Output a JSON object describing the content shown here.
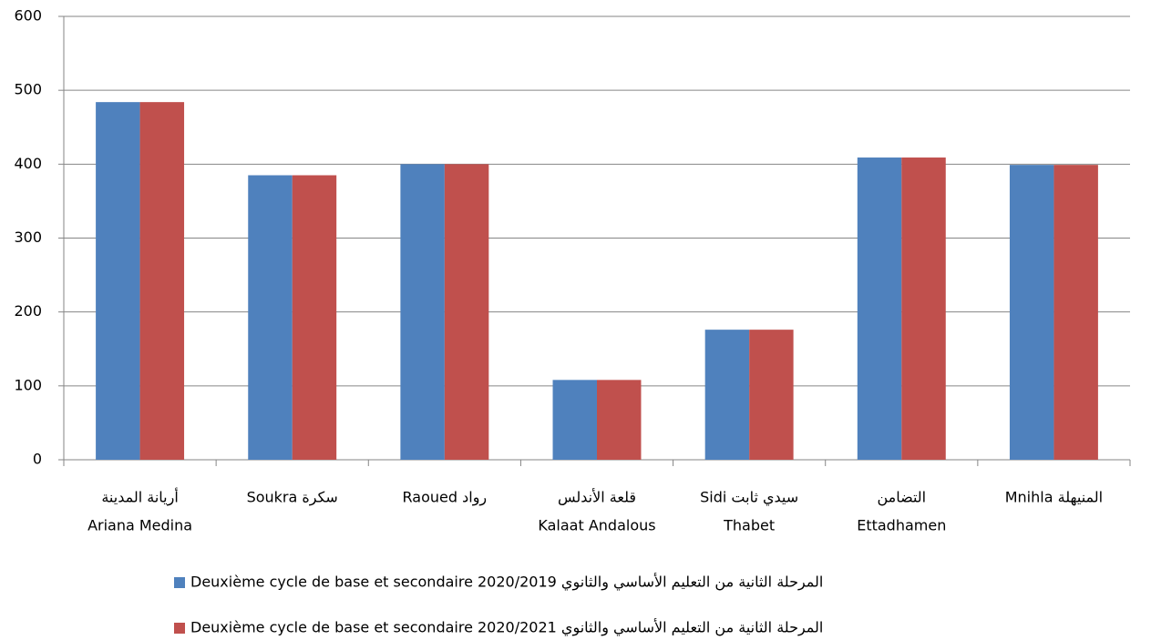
{
  "chart_data": {
    "type": "bar",
    "categories": [
      [
        "أريانة المدينة",
        "Ariana Medina"
      ],
      [
        "سكرة  Soukra"
      ],
      [
        "Raoued   رواد"
      ],
      [
        "قلعة الأندلس",
        "Kalaat Andalous"
      ],
      [
        "Sidi  سيدي ثابت",
        "Thabet"
      ],
      [
        "التضامن",
        "Ettadhamen"
      ],
      [
        "Mnihla  المنيهلة"
      ]
    ],
    "series": [
      {
        "name": "Deuxième cycle de base et secondaire 2020/2019 المرحلة الثانية من التعليم الأساسي والثانوي",
        "color": "#4f81bd",
        "values": [
          484,
          385,
          400,
          108,
          176,
          409,
          399
        ]
      },
      {
        "name": "Deuxième cycle de base et secondaire 2020/2021 المرحلة الثانية من التعليم الأساسي والثانوي",
        "color": "#c0504d",
        "values": [
          484,
          385,
          400,
          108,
          176,
          409,
          399
        ]
      }
    ],
    "ylim": [
      0,
      600
    ],
    "yticks": [
      0,
      100,
      200,
      300,
      400,
      500,
      600
    ],
    "grid": true,
    "legend": "bottom"
  }
}
